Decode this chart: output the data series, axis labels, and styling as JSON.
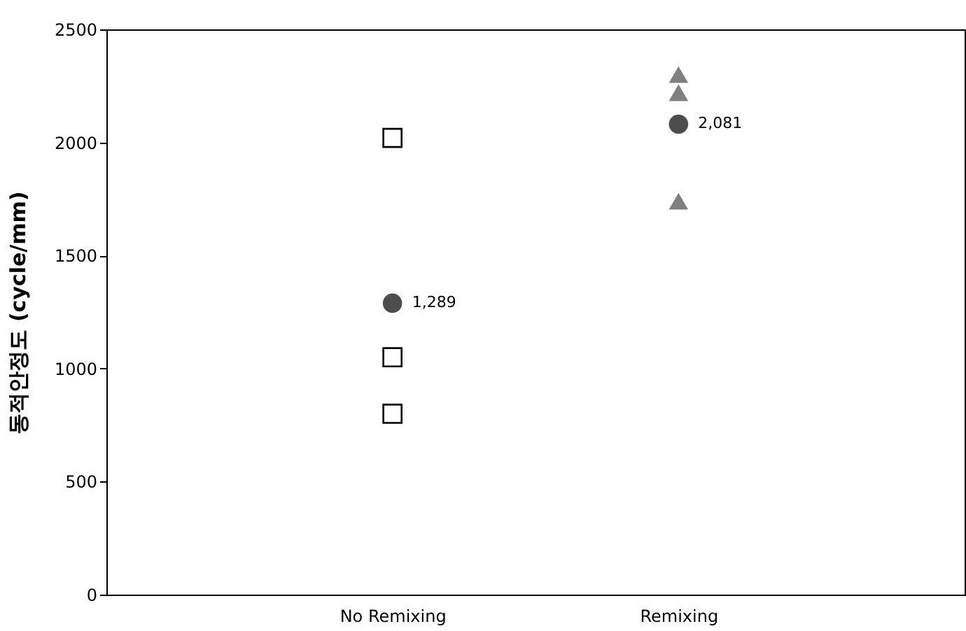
{
  "chart_data": {
    "type": "scatter",
    "ylabel": "동적안정도 (cycle/mm)",
    "categories": [
      "No Remixing",
      "Remixing"
    ],
    "series": [
      {
        "x": [
          "No Remixing",
          "No Remixing",
          "No Remixing"
        ],
        "values": [
          2020,
          1050,
          800
        ],
        "color": "#000000",
        "marker": "square"
      },
      {
        "x": [
          "No Remixing",
          "Remixing"
        ],
        "values": [
          1289,
          2081
        ],
        "color": "#4d4d4d",
        "marker": "circle",
        "value_labels": [
          "1,289",
          "2,081"
        ]
      },
      {
        "x": [
          "Remixing",
          "Remixing",
          "Remixing"
        ],
        "values": [
          2300,
          2220,
          1740
        ],
        "color": "#808080",
        "marker": "triangle"
      }
    ],
    "ylim": [
      0,
      2500
    ],
    "yticks": [
      0,
      500,
      1000,
      1500,
      2000,
      2500
    ]
  }
}
